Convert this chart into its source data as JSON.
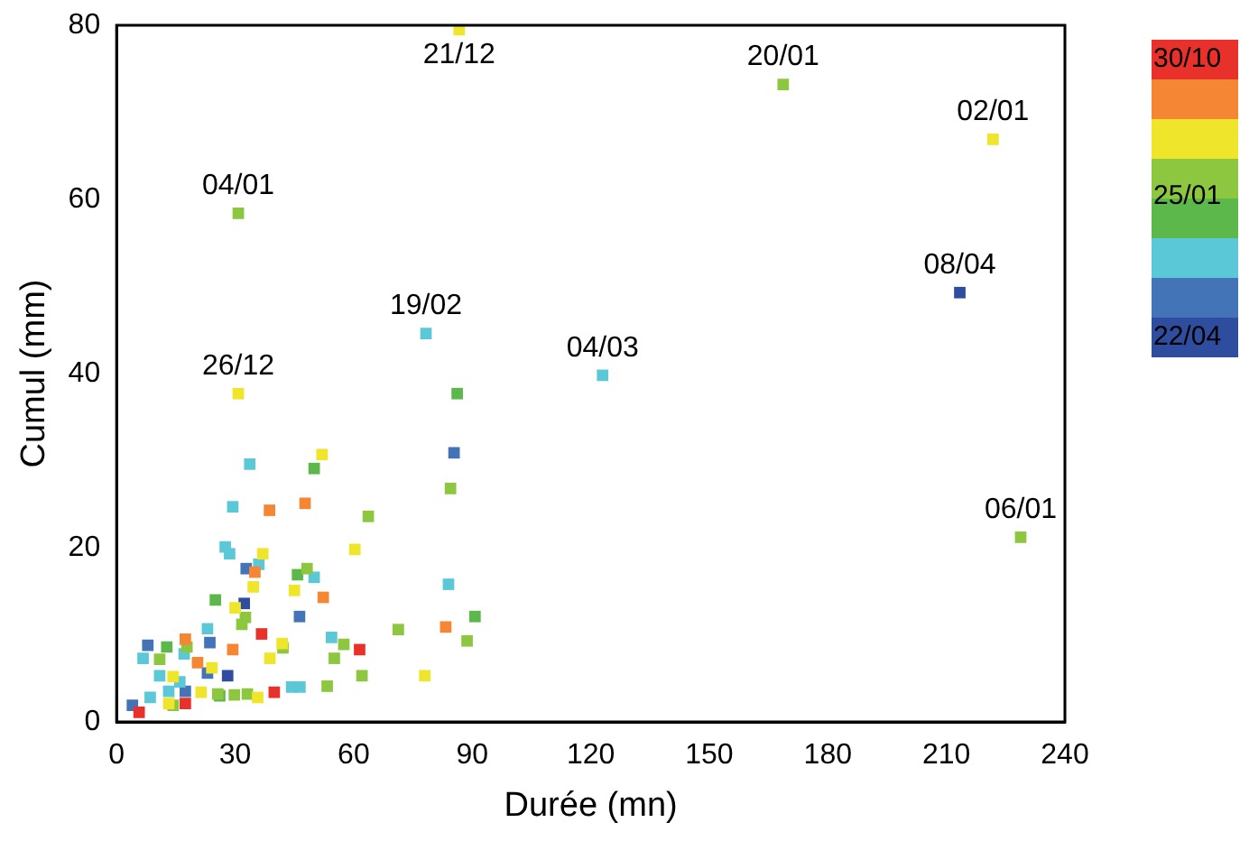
{
  "chart_data": {
    "type": "scatter",
    "xlabel": "Durée (mn)",
    "ylabel": "Cumul (mm)",
    "xlim": [
      0,
      240
    ],
    "xticks": [
      0,
      30,
      60,
      90,
      120,
      150,
      180,
      210,
      240
    ],
    "ylim": [
      0,
      80
    ],
    "yticks": [
      0,
      20,
      40,
      60,
      80
    ],
    "grid": false,
    "marker": "square",
    "legend": "right",
    "series": [
      {
        "name": "30/10",
        "color": "#e8312a",
        "x": [
          36.7,
          61.5,
          39.9,
          5.7,
          17.4
        ],
        "values": [
          10.1,
          8.3,
          3.4,
          1.1,
          2.1
        ]
      },
      {
        "color": "#f58634",
        "x": [
          38.7,
          47.7,
          35,
          52.3,
          83.3,
          17.4,
          29.4,
          20.5
        ],
        "values": [
          24.3,
          25.1,
          17.2,
          14.3,
          10.9,
          9.5,
          8.3,
          6.8
        ]
      },
      {
        "color": "#efe52a",
        "x": [
          86.7,
          221.8,
          30.8,
          52.0,
          60.3,
          37.0,
          34.6,
          45.0,
          30.0,
          41.9,
          38.8,
          24.1,
          78.0,
          14.3,
          21.4,
          35.7,
          13.2
        ],
        "values": [
          79.5,
          66.9,
          37.7,
          30.7,
          19.8,
          19.3,
          15.5,
          15.1,
          13.1,
          9.0,
          7.3,
          6.2,
          5.3,
          5.2,
          3.4,
          2.8,
          2.1
        ]
      },
      {
        "color": "#8dc63f",
        "x": [
          168.7,
          30.8,
          228.8,
          84.5,
          63.7,
          48.2,
          32.6,
          31.7,
          71.3,
          88.7,
          42.1,
          57.5,
          55.1,
          10.9,
          17.8,
          62.1,
          25.6,
          29.8,
          33.1,
          53.3,
          14.3
        ],
        "values": [
          73.2,
          58.4,
          21.2,
          26.8,
          23.6,
          17.6,
          12.0,
          11.2,
          10.6,
          9.3,
          8.5,
          8.9,
          7.3,
          7.2,
          8.6,
          5.3,
          3.2,
          3.1,
          3.2,
          4.1,
          1.9
        ]
      },
      {
        "color": "#5cb84a",
        "x": [
          86.2,
          50.0,
          45.8,
          25.0,
          90.7,
          12.7,
          26.1
        ],
        "values": [
          37.7,
          29.1,
          16.9,
          14.0,
          12.1,
          8.6,
          3.0
        ]
      },
      {
        "color": "#5bc8d8",
        "x": [
          78.3,
          123,
          33.7,
          29.4,
          27.5,
          28.6,
          36.0,
          50.0,
          84.0,
          23.0,
          54.4,
          6.7,
          17.1,
          10.9,
          16.0,
          13.2,
          44.3,
          46.4,
          8.5
        ],
        "values": [
          44.6,
          39.8,
          29.6,
          24.7,
          20.1,
          19.3,
          18.1,
          16.6,
          15.8,
          10.7,
          9.7,
          7.3,
          7.8,
          5.3,
          4.6,
          3.5,
          4.0,
          4.0,
          2.8
        ]
      },
      {
        "color": "#4474b8",
        "x": [
          85.4,
          32.8,
          46.3,
          7.9,
          23.6,
          23.0,
          17.4,
          4.0
        ],
        "values": [
          30.9,
          17.6,
          12.1,
          8.8,
          9.1,
          5.6,
          3.5,
          1.9
        ]
      },
      {
        "name": "22/04",
        "color": "#2e4d9e",
        "x": [
          213.4,
          32.3,
          28.1
        ],
        "values": [
          49.3,
          13.6,
          5.3
        ]
      }
    ],
    "annotations": [
      {
        "text": "21/12",
        "x": 86.7,
        "y": 79.5
      },
      {
        "text": "20/01",
        "x": 168.7,
        "y": 73.2
      },
      {
        "text": "02/01",
        "x": 221.8,
        "y": 66.9
      },
      {
        "text": "04/01",
        "x": 30.8,
        "y": 58.4
      },
      {
        "text": "08/04",
        "x": 213.4,
        "y": 49.3
      },
      {
        "text": "19/02",
        "x": 78.3,
        "y": 44.6
      },
      {
        "text": "04/03",
        "x": 123,
        "y": 39.8
      },
      {
        "text": "26/12",
        "x": 30.8,
        "y": 37.7
      },
      {
        "text": "06/01",
        "x": 228.8,
        "y": 21.2
      },
      "25/01"
    ]
  }
}
